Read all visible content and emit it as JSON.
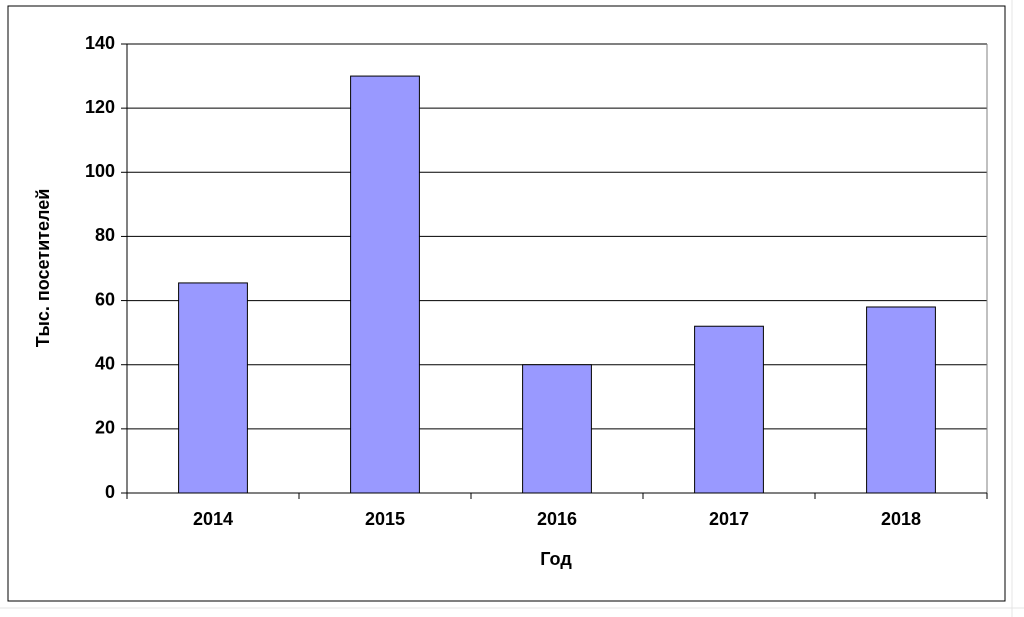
{
  "chart_data": {
    "type": "bar",
    "x_label": "Год",
    "y_label": "Тыс. посетителей",
    "categories": [
      "2014",
      "2015",
      "2016",
      "2017",
      "2018"
    ],
    "values": [
      65.5,
      130,
      40,
      52,
      58
    ],
    "color": "#9999ff",
    "ylim": [
      0,
      140
    ],
    "yticks": [
      0,
      20,
      40,
      60,
      80,
      100,
      120,
      140
    ],
    "grid": true
  }
}
